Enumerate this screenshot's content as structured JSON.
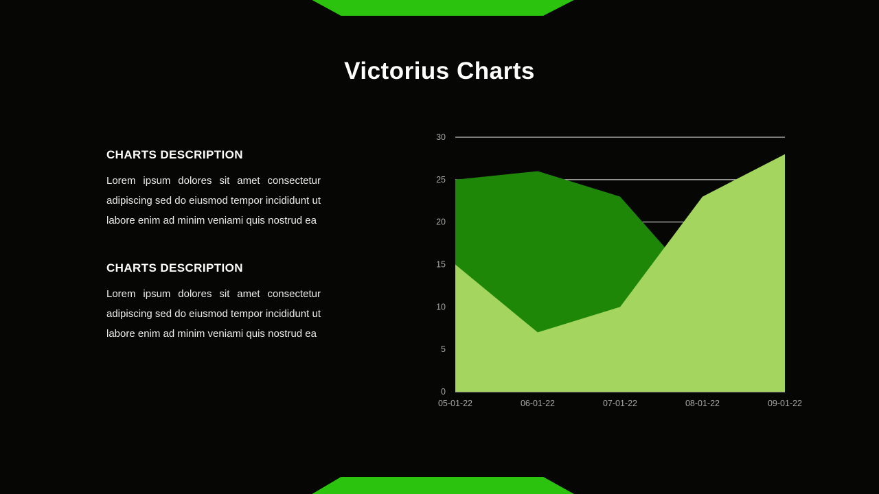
{
  "page": {
    "title": "Victorius Charts",
    "background": "#060604",
    "accent_green": "#2bc30e"
  },
  "sections": [
    {
      "heading": "CHARTS DESCRIPTION",
      "body": "Lorem ipsum dolores sit amet consectetur adipiscing sed do eiusmod tempor incididunt ut labore enim ad minim veniami quis nostrud ea"
    },
    {
      "heading": "CHARTS DESCRIPTION",
      "body": "Lorem ipsum dolores sit amet consectetur adipiscing sed do eiusmod tempor incididunt ut labore enim ad minim veniami quis nostrud ea"
    }
  ],
  "chart_data": {
    "type": "area",
    "x": [
      "05-01-22",
      "06-01-22",
      "07-01-22",
      "08-01-22",
      "09-01-22"
    ],
    "series": [
      {
        "name": "dark-green-series",
        "color": "#1e8708",
        "values": [
          25,
          26,
          23,
          12,
          5
        ]
      },
      {
        "name": "light-green-series",
        "color": "#a3d55f",
        "values": [
          15,
          7,
          10,
          23,
          28
        ]
      }
    ],
    "ylim": [
      0,
      30
    ],
    "yticks": [
      0,
      5,
      10,
      15,
      20,
      25,
      30
    ],
    "grid": true,
    "gridline_color": "#f2f2f2",
    "legend": "none",
    "title": "",
    "xlabel": "",
    "ylabel": ""
  }
}
